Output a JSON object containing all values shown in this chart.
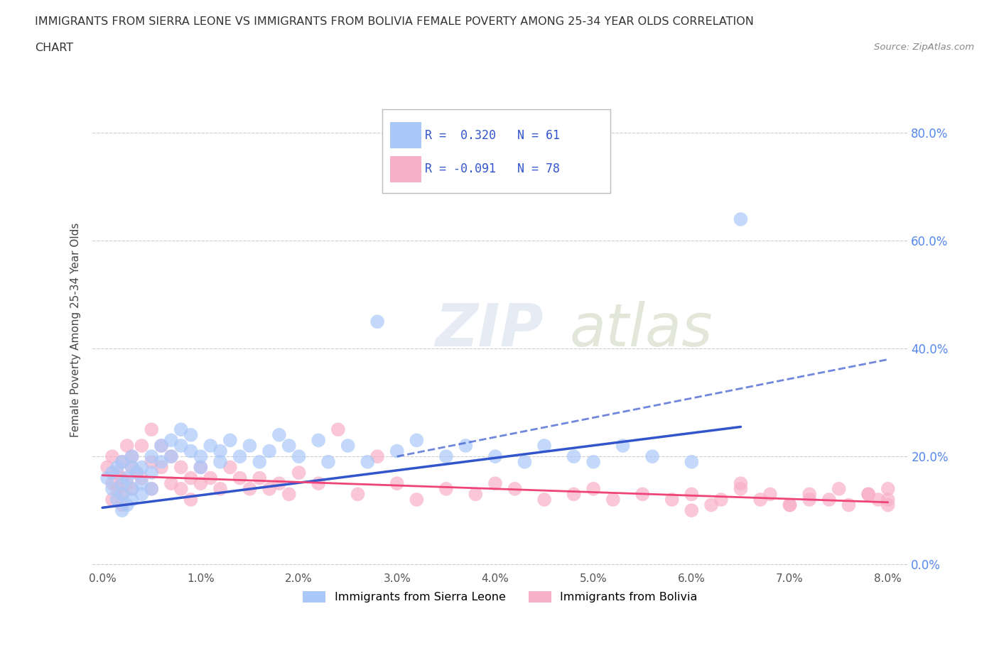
{
  "title_line1": "IMMIGRANTS FROM SIERRA LEONE VS IMMIGRANTS FROM BOLIVIA FEMALE POVERTY AMONG 25-34 YEAR OLDS CORRELATION",
  "title_line2": "CHART",
  "source_text": "Source: ZipAtlas.com",
  "ylabel": "Female Poverty Among 25-34 Year Olds",
  "xlim": [
    -0.001,
    0.082
  ],
  "ylim": [
    -0.01,
    0.88
  ],
  "yticks": [
    0.0,
    0.2,
    0.4,
    0.6,
    0.8
  ],
  "ytick_labels": [
    "0.0%",
    "20.0%",
    "40.0%",
    "60.0%",
    "80.0%"
  ],
  "xticks": [
    0.0,
    0.01,
    0.02,
    0.03,
    0.04,
    0.05,
    0.06,
    0.07,
    0.08
  ],
  "xtick_labels": [
    "0.0%",
    "1.0%",
    "2.0%",
    "3.0%",
    "4.0%",
    "5.0%",
    "6.0%",
    "7.0%",
    "8.0%"
  ],
  "color_sierra": "#aac8f8",
  "color_bolivia": "#f8b0c8",
  "color_sierra_line": "#3355cc",
  "color_bolivia_line": "#ee4477",
  "R_sierra": 0.32,
  "N_sierra": 61,
  "R_bolivia": -0.091,
  "N_bolivia": 78,
  "legend_label_sierra": "Immigrants from Sierra Leone",
  "legend_label_bolivia": "Immigrants from Bolivia",
  "watermark_zip": "ZIP",
  "watermark_atlas": "atlas",
  "sierra_leone_x": [
    0.0005,
    0.001,
    0.001,
    0.0015,
    0.0015,
    0.002,
    0.002,
    0.002,
    0.002,
    0.0025,
    0.0025,
    0.003,
    0.003,
    0.003,
    0.003,
    0.0035,
    0.004,
    0.004,
    0.004,
    0.005,
    0.005,
    0.005,
    0.006,
    0.006,
    0.007,
    0.007,
    0.008,
    0.008,
    0.009,
    0.009,
    0.01,
    0.01,
    0.011,
    0.012,
    0.012,
    0.013,
    0.014,
    0.015,
    0.016,
    0.017,
    0.018,
    0.019,
    0.02,
    0.022,
    0.023,
    0.025,
    0.027,
    0.028,
    0.03,
    0.032,
    0.035,
    0.037,
    0.04,
    0.043,
    0.045,
    0.048,
    0.05,
    0.053,
    0.056,
    0.06,
    0.065
  ],
  "sierra_leone_y": [
    0.16,
    0.17,
    0.14,
    0.18,
    0.12,
    0.15,
    0.1,
    0.19,
    0.13,
    0.16,
    0.11,
    0.18,
    0.14,
    0.2,
    0.12,
    0.17,
    0.18,
    0.15,
    0.13,
    0.2,
    0.17,
    0.14,
    0.22,
    0.19,
    0.23,
    0.2,
    0.25,
    0.22,
    0.21,
    0.24,
    0.2,
    0.18,
    0.22,
    0.21,
    0.19,
    0.23,
    0.2,
    0.22,
    0.19,
    0.21,
    0.24,
    0.22,
    0.2,
    0.23,
    0.19,
    0.22,
    0.19,
    0.45,
    0.21,
    0.23,
    0.2,
    0.22,
    0.2,
    0.19,
    0.22,
    0.2,
    0.19,
    0.22,
    0.2,
    0.19,
    0.64
  ],
  "bolivia_x": [
    0.0005,
    0.001,
    0.001,
    0.001,
    0.0015,
    0.0015,
    0.002,
    0.002,
    0.002,
    0.002,
    0.0025,
    0.0025,
    0.003,
    0.003,
    0.003,
    0.0035,
    0.004,
    0.004,
    0.005,
    0.005,
    0.005,
    0.006,
    0.006,
    0.007,
    0.007,
    0.008,
    0.008,
    0.009,
    0.009,
    0.01,
    0.01,
    0.011,
    0.012,
    0.013,
    0.014,
    0.015,
    0.016,
    0.017,
    0.018,
    0.019,
    0.02,
    0.022,
    0.024,
    0.026,
    0.028,
    0.03,
    0.032,
    0.035,
    0.038,
    0.04,
    0.042,
    0.045,
    0.048,
    0.05,
    0.052,
    0.055,
    0.058,
    0.06,
    0.062,
    0.065,
    0.067,
    0.07,
    0.072,
    0.074,
    0.076,
    0.078,
    0.079,
    0.08,
    0.08,
    0.08,
    0.078,
    0.075,
    0.072,
    0.07,
    0.068,
    0.065,
    0.063,
    0.06
  ],
  "bolivia_y": [
    0.18,
    0.15,
    0.2,
    0.12,
    0.17,
    0.14,
    0.16,
    0.11,
    0.19,
    0.13,
    0.15,
    0.22,
    0.18,
    0.14,
    0.2,
    0.17,
    0.22,
    0.16,
    0.25,
    0.19,
    0.14,
    0.22,
    0.18,
    0.2,
    0.15,
    0.18,
    0.14,
    0.16,
    0.12,
    0.15,
    0.18,
    0.16,
    0.14,
    0.18,
    0.16,
    0.14,
    0.16,
    0.14,
    0.15,
    0.13,
    0.17,
    0.15,
    0.25,
    0.13,
    0.2,
    0.15,
    0.12,
    0.14,
    0.13,
    0.15,
    0.14,
    0.12,
    0.13,
    0.14,
    0.12,
    0.13,
    0.12,
    0.13,
    0.11,
    0.14,
    0.12,
    0.11,
    0.13,
    0.12,
    0.11,
    0.13,
    0.12,
    0.14,
    0.12,
    0.11,
    0.13,
    0.14,
    0.12,
    0.11,
    0.13,
    0.15,
    0.12,
    0.1
  ],
  "sl_trend_x": [
    0.0,
    0.065
  ],
  "sl_trend_y": [
    0.105,
    0.255
  ],
  "bo_trend_x": [
    0.0,
    0.08
  ],
  "bo_trend_y": [
    0.165,
    0.115
  ]
}
